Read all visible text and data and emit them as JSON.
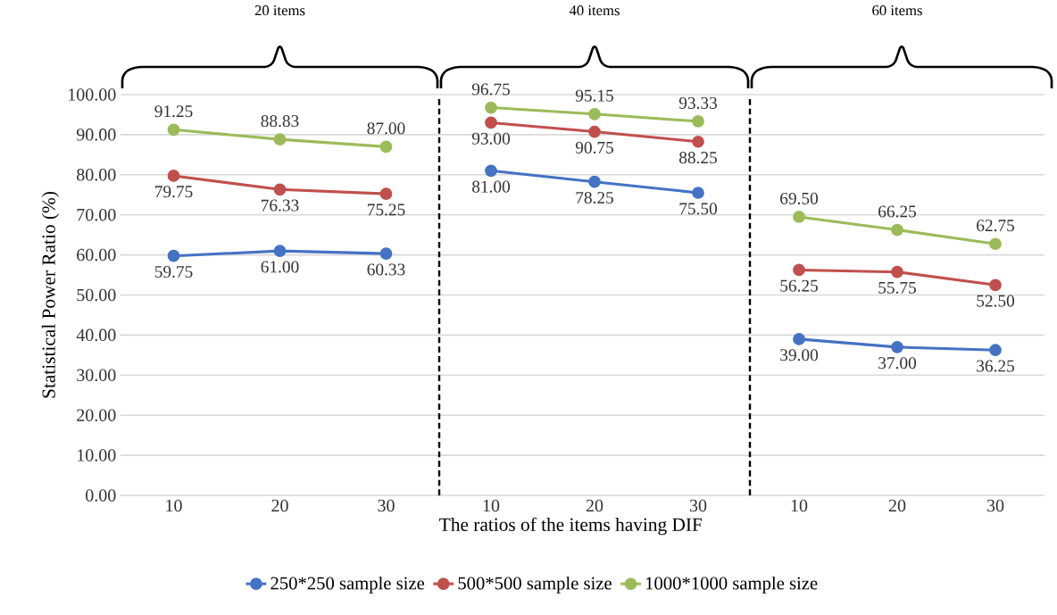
{
  "chart_data": [
    {
      "type": "line",
      "title": "20 items",
      "ylabel": "Statistical Power Ratio (%)",
      "categories": [
        "10",
        "20",
        "30"
      ],
      "ylim": [
        0,
        100
      ],
      "yticks": [
        {
          "value": 0,
          "label": "0.00"
        },
        {
          "value": 10,
          "label": "10.00"
        },
        {
          "value": 20,
          "label": "20.00"
        },
        {
          "value": 30,
          "label": "30.00"
        },
        {
          "value": 40,
          "label": "40.00"
        },
        {
          "value": 50,
          "label": "50.00"
        },
        {
          "value": 60,
          "label": "60.00"
        },
        {
          "value": 70,
          "label": "70.00"
        },
        {
          "value": 80,
          "label": "80.00"
        },
        {
          "value": 90,
          "label": "90.00"
        },
        {
          "value": 100,
          "label": "100.00"
        }
      ],
      "grid": "y",
      "marker": "circle",
      "series": [
        {
          "color": "#4472c4",
          "values": [
            59.75,
            61.0,
            60.33
          ],
          "value_labels": [
            "59.75",
            "61.00",
            "60.33"
          ]
        },
        {
          "color": "#c0504d",
          "values": [
            79.75,
            76.33,
            75.25
          ],
          "value_labels": [
            "79.75",
            "76.33",
            "75.25"
          ]
        },
        {
          "color": "#9bbb59",
          "values": [
            91.25,
            88.83,
            87.0
          ],
          "value_labels": [
            "91.25",
            "88.83",
            "87.00"
          ]
        }
      ]
    },
    {
      "type": "line",
      "title": "40 items",
      "xlabel": "The ratios of the items having DIF",
      "categories": [
        "10",
        "20",
        "30"
      ],
      "ylim": [
        0,
        100
      ],
      "yticks": [
        {
          "value": 0,
          "label": null
        },
        {
          "value": 10,
          "label": null
        },
        {
          "value": 20,
          "label": null
        },
        {
          "value": 30,
          "label": null
        },
        {
          "value": 40,
          "label": null
        },
        {
          "value": 50,
          "label": null
        },
        {
          "value": 60,
          "label": null
        },
        {
          "value": 70,
          "label": null
        },
        {
          "value": 80,
          "label": null
        },
        {
          "value": 90,
          "label": null
        },
        {
          "value": 100,
          "label": null
        }
      ],
      "tick_labels": "x",
      "grid": "y",
      "marker": "circle",
      "legend": "bottom",
      "series": [
        {
          "name": "250*250 sample size",
          "color": "#4472c4",
          "values": [
            81.0,
            78.25,
            75.5
          ],
          "value_labels": [
            "81.00",
            "78.25",
            "75.50"
          ]
        },
        {
          "name": "500*500 sample size",
          "color": "#c0504d",
          "values": [
            93.0,
            90.75,
            88.25
          ],
          "value_labels": [
            "93.00",
            "90.75",
            "88.25"
          ]
        },
        {
          "name": "1000*1000 sample size",
          "color": "#9bbb59",
          "values": [
            96.75,
            95.15,
            93.33
          ],
          "value_labels": [
            "96.75",
            "95.15",
            "93.33"
          ]
        }
      ]
    },
    {
      "type": "line",
      "title": "60 items",
      "categories": [
        "10",
        "20",
        "30"
      ],
      "ylim": [
        0,
        100
      ],
      "yticks": [
        {
          "value": 0,
          "label": null
        },
        {
          "value": 10,
          "label": null
        },
        {
          "value": 20,
          "label": null
        },
        {
          "value": 30,
          "label": null
        },
        {
          "value": 40,
          "label": null
        },
        {
          "value": 50,
          "label": null
        },
        {
          "value": 60,
          "label": null
        },
        {
          "value": 70,
          "label": null
        },
        {
          "value": 80,
          "label": null
        },
        {
          "value": 90,
          "label": null
        },
        {
          "value": 100,
          "label": null
        }
      ],
      "tick_labels": "x",
      "grid": "y",
      "marker": "circle",
      "series": [
        {
          "color": "#4472c4",
          "values": [
            39.0,
            37.0,
            36.25
          ],
          "value_labels": [
            "39.00",
            "37.00",
            "36.25"
          ]
        },
        {
          "color": "#c0504d",
          "values": [
            56.25,
            55.75,
            52.5
          ],
          "value_labels": [
            "56.25",
            "55.75",
            "52.50"
          ]
        },
        {
          "color": "#9bbb59",
          "values": [
            69.5,
            66.25,
            62.75
          ],
          "value_labels": [
            "69.50",
            "66.25",
            "62.75"
          ]
        }
      ]
    }
  ]
}
